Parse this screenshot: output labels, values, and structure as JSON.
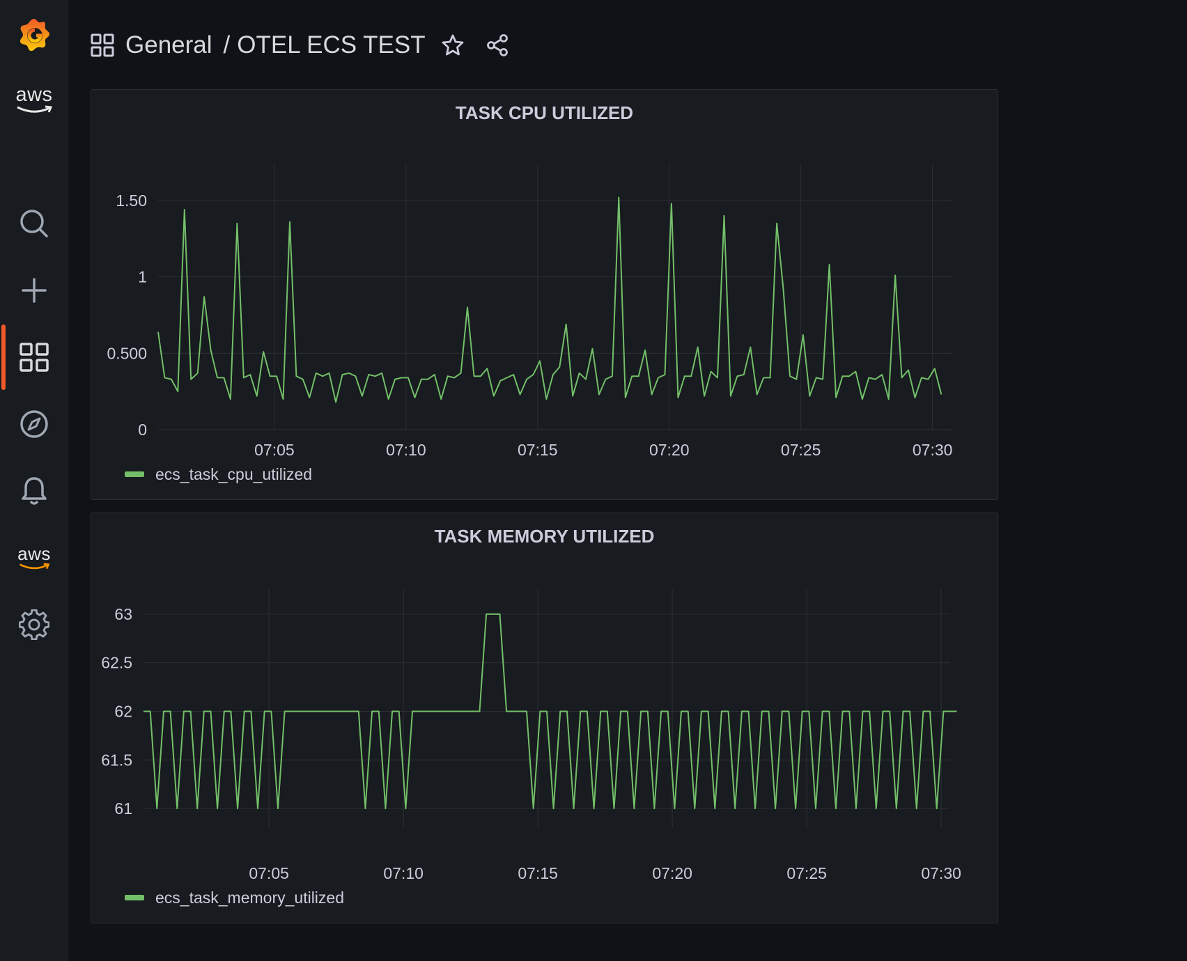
{
  "header": {
    "folder": "General",
    "separator": "/",
    "dashboard": "OTEL ECS TEST"
  },
  "sidebar": {
    "aws_top": "aws",
    "aws_bottom": "aws",
    "items": [
      "search-icon",
      "plus-icon",
      "dashboards-icon",
      "explore-icon",
      "alerting-icon",
      "aws-icon",
      "gear-icon"
    ]
  },
  "colors": {
    "accent": "#f05a28",
    "series": "#73bf69",
    "background": "#111217",
    "panel": "#181b1f"
  },
  "chart_data": [
    {
      "type": "line",
      "title": "TASK CPU UTILIZED",
      "xlabel": "",
      "ylabel": "",
      "x_start": "07:00:35",
      "x_step_seconds": 15,
      "xticks": [
        "07:05",
        "07:10",
        "07:15",
        "07:20",
        "07:25",
        "07:30"
      ],
      "yticks": [
        {
          "v": 0,
          "label": "0"
        },
        {
          "v": 0.5,
          "label": "0.500"
        },
        {
          "v": 1,
          "label": "1"
        },
        {
          "v": 1.5,
          "label": "1.50"
        }
      ],
      "xlim": [
        "07:00:35",
        "07:30:45"
      ],
      "ylim": [
        0,
        1.7
      ],
      "grid": true,
      "legend": "bottom-left",
      "series": [
        {
          "name": "ecs_task_cpu_utilized",
          "values": [
            0.64,
            0.34,
            0.33,
            0.25,
            1.44,
            0.33,
            0.37,
            0.87,
            0.52,
            0.34,
            0.34,
            0.2,
            1.35,
            0.34,
            0.36,
            0.22,
            0.51,
            0.35,
            0.35,
            0.2,
            1.36,
            0.35,
            0.33,
            0.21,
            0.37,
            0.35,
            0.37,
            0.18,
            0.36,
            0.37,
            0.35,
            0.22,
            0.36,
            0.35,
            0.37,
            0.2,
            0.33,
            0.34,
            0.34,
            0.21,
            0.33,
            0.33,
            0.36,
            0.2,
            0.35,
            0.34,
            0.37,
            0.8,
            0.35,
            0.35,
            0.4,
            0.22,
            0.32,
            0.34,
            0.36,
            0.23,
            0.33,
            0.36,
            0.45,
            0.2,
            0.36,
            0.41,
            0.69,
            0.22,
            0.37,
            0.33,
            0.53,
            0.23,
            0.33,
            0.35,
            1.52,
            0.21,
            0.35,
            0.35,
            0.52,
            0.23,
            0.34,
            0.36,
            1.48,
            0.21,
            0.35,
            0.35,
            0.54,
            0.22,
            0.38,
            0.34,
            1.4,
            0.22,
            0.35,
            0.36,
            0.54,
            0.23,
            0.34,
            0.34,
            1.35,
            0.92,
            0.35,
            0.33,
            0.62,
            0.22,
            0.34,
            0.33,
            1.08,
            0.21,
            0.35,
            0.35,
            0.38,
            0.2,
            0.34,
            0.33,
            0.36,
            0.2,
            1.01,
            0.34,
            0.39,
            0.21,
            0.34,
            0.33,
            0.4,
            0.23
          ]
        }
      ]
    },
    {
      "type": "line",
      "title": "TASK MEMORY UTILIZED",
      "xlabel": "",
      "ylabel": "",
      "x_start": "07:00:20",
      "x_step_seconds": 15,
      "xticks": [
        "07:05",
        "07:10",
        "07:15",
        "07:20",
        "07:25",
        "07:30"
      ],
      "yticks": [
        {
          "v": 61,
          "label": "61"
        },
        {
          "v": 61.5,
          "label": "61.5"
        },
        {
          "v": 62,
          "label": "62"
        },
        {
          "v": 62.5,
          "label": "62.5"
        },
        {
          "v": 63,
          "label": "63"
        }
      ],
      "xlim": [
        "07:00:20",
        "07:30:20"
      ],
      "ylim": [
        60.8,
        63.2
      ],
      "grid": true,
      "legend": "bottom-left",
      "series": [
        {
          "name": "ecs_task_memory_utilized",
          "values": [
            62,
            62,
            61,
            62,
            62,
            61,
            62,
            62,
            61,
            62,
            62,
            61,
            62,
            62,
            61,
            62,
            62,
            61,
            62,
            62,
            61,
            62,
            62,
            62,
            62,
            62,
            62,
            62,
            62,
            62,
            62,
            62,
            62,
            61,
            62,
            62,
            61,
            62,
            62,
            61,
            62,
            62,
            62,
            62,
            62,
            62,
            62,
            62,
            62,
            62,
            62,
            63,
            63,
            63,
            62,
            62,
            62,
            62,
            61,
            62,
            62,
            61,
            62,
            62,
            61,
            62,
            62,
            61,
            62,
            62,
            61,
            62,
            62,
            61,
            62,
            62,
            61,
            62,
            62,
            61,
            62,
            62,
            61,
            62,
            62,
            61,
            62,
            62,
            61,
            62,
            62,
            61,
            62,
            62,
            61,
            62,
            62,
            61,
            62,
            62,
            61,
            62,
            62,
            61,
            62,
            62,
            61,
            62,
            62,
            61,
            62,
            62,
            61,
            62,
            62,
            61,
            62,
            62,
            61,
            62,
            62,
            62
          ]
        }
      ]
    }
  ]
}
